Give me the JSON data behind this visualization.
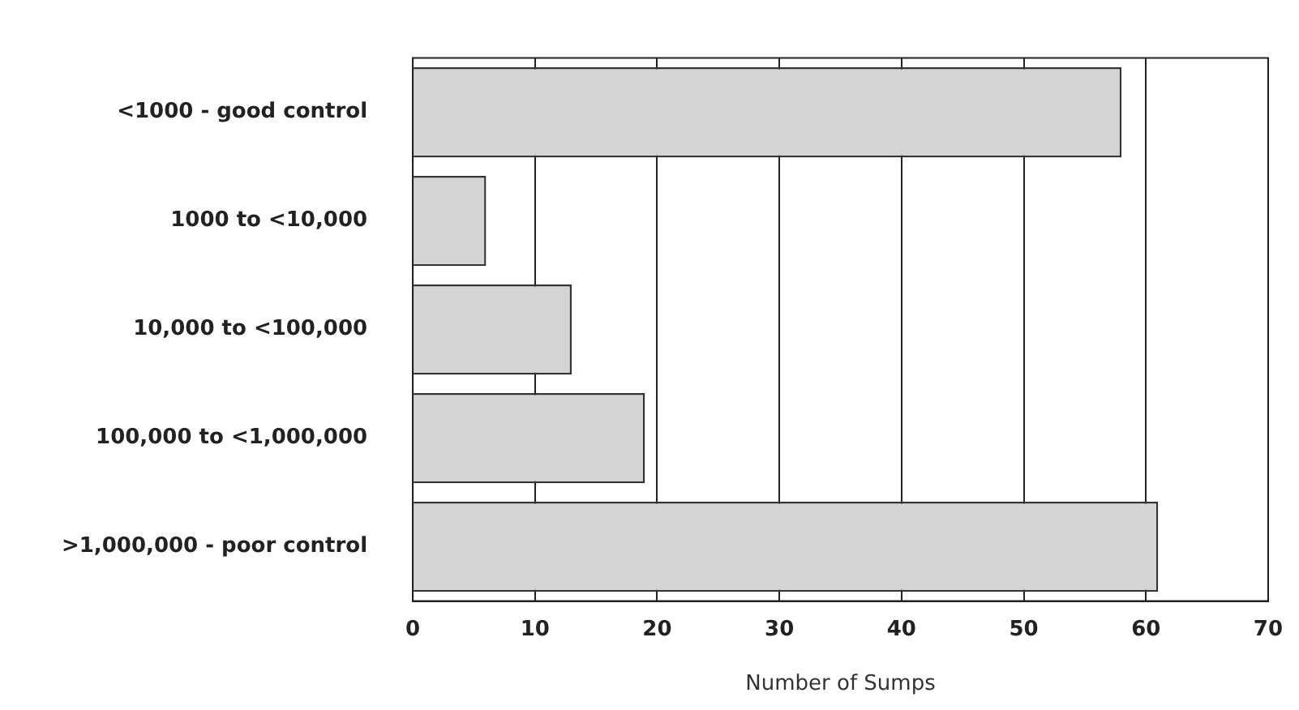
{
  "chart_data": {
    "type": "bar",
    "orientation": "horizontal",
    "categories": [
      "<1000 - good control",
      "1000 to <10,000",
      "10,000 to <100,000",
      "100,000 to <1,000,000",
      ">1,000,000 - poor control"
    ],
    "values": [
      58,
      6,
      13,
      19,
      61
    ],
    "color": "#d4d4d4",
    "xlim": [
      0,
      70
    ],
    "xticks": [
      0,
      10,
      20,
      30,
      40,
      50,
      60,
      70
    ],
    "xlabel": "Number of Sumps",
    "grid": "x",
    "legend": false
  }
}
